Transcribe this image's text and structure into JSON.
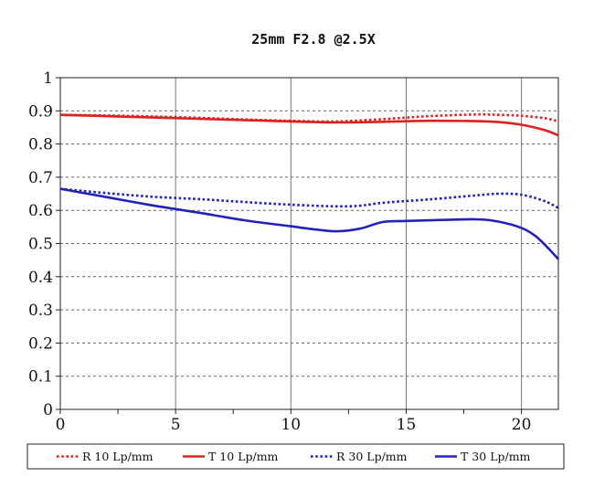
{
  "chart_data": {
    "type": "line",
    "title": "25mm F2.8  @2.5X",
    "xlabel": "",
    "ylabel": "",
    "xlim": [
      0,
      21.6
    ],
    "ylim": [
      0,
      1
    ],
    "xticks": [
      0,
      5,
      10,
      15,
      20
    ],
    "xticks_minor": [
      2.5,
      7.5,
      12.5,
      17.5
    ],
    "yticks": [
      0,
      0.1,
      0.2,
      0.3,
      0.4,
      0.5,
      0.6,
      0.7,
      0.8,
      0.9,
      1
    ],
    "ytick_labels": [
      "0",
      "0.1",
      "0.2",
      "0.3",
      "0.4",
      "0.5",
      "0.6",
      "0.7",
      "0.8",
      "0.9",
      "1"
    ],
    "xtick_labels": [
      "0",
      "5",
      "10",
      "15",
      "20"
    ],
    "grid": "major, dashed horizontal and solid vertical",
    "legend": "bottom, boxed",
    "series": [
      {
        "name": "R 10 Lp/mm",
        "color": "#e02020",
        "style": "dotted",
        "x": [
          0,
          2,
          4,
          6,
          8,
          10,
          12,
          14,
          16,
          18,
          19,
          20,
          21,
          21.6
        ],
        "y": [
          0.888,
          0.886,
          0.883,
          0.879,
          0.874,
          0.87,
          0.868,
          0.875,
          0.884,
          0.889,
          0.888,
          0.885,
          0.878,
          0.868
        ]
      },
      {
        "name": "T 10 Lp/mm",
        "color": "#e02020",
        "style": "solid",
        "x": [
          0,
          2,
          4,
          6,
          8,
          10,
          12,
          14,
          16,
          18,
          19,
          20,
          21,
          21.6
        ],
        "y": [
          0.888,
          0.884,
          0.88,
          0.876,
          0.872,
          0.868,
          0.865,
          0.867,
          0.87,
          0.869,
          0.866,
          0.858,
          0.842,
          0.826
        ]
      },
      {
        "name": "R 30 Lp/mm",
        "color": "#2222bb",
        "style": "dotted",
        "x": [
          0,
          2,
          4,
          6,
          8,
          10,
          12,
          13,
          14,
          16,
          18,
          19,
          20,
          21,
          21.6
        ],
        "y": [
          0.665,
          0.652,
          0.641,
          0.634,
          0.625,
          0.617,
          0.612,
          0.614,
          0.623,
          0.633,
          0.645,
          0.65,
          0.647,
          0.628,
          0.607
        ]
      },
      {
        "name": "T 30 Lp/mm",
        "color": "#2222bb",
        "style": "solid",
        "x": [
          0,
          2,
          4,
          6,
          8,
          10,
          11,
          12,
          13,
          14,
          15,
          16,
          18,
          19,
          20,
          20.6,
          21.1,
          21.6
        ],
        "y": [
          0.665,
          0.64,
          0.615,
          0.593,
          0.57,
          0.552,
          0.543,
          0.537,
          0.545,
          0.565,
          0.568,
          0.57,
          0.573,
          0.566,
          0.547,
          0.523,
          0.49,
          0.453
        ]
      }
    ]
  }
}
